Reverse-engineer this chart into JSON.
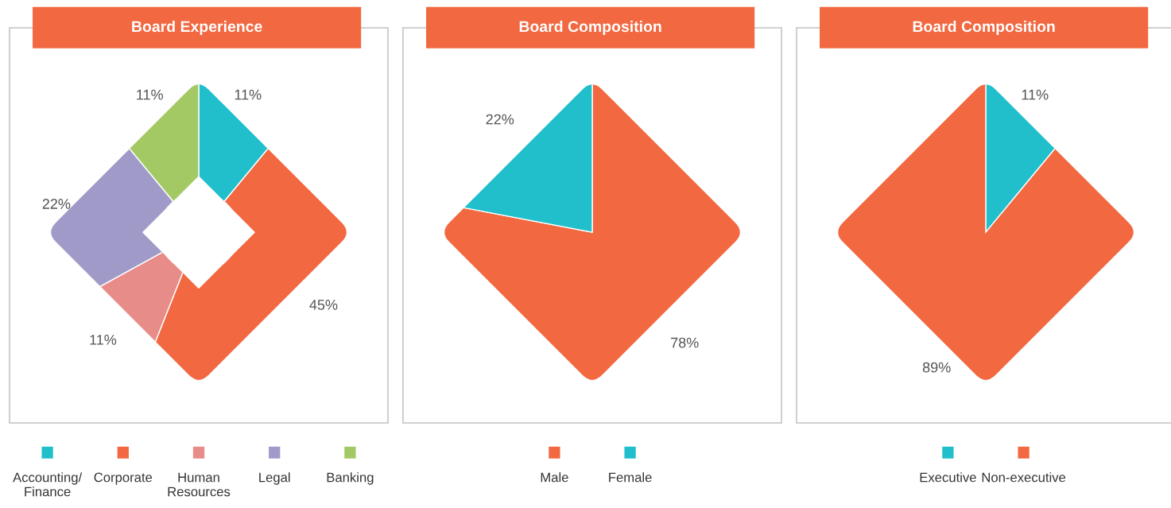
{
  "chart_data": [
    {
      "type": "donut",
      "title": "Board Experience",
      "categories": [
        "Accounting/\nFinance",
        "Corporate",
        "Human\nResources",
        "Legal",
        "Banking"
      ],
      "values": [
        11,
        45,
        11,
        22,
        11
      ],
      "value_labels": [
        "11%",
        "45%",
        "11%",
        "22%",
        "11%"
      ],
      "colors": [
        "#21bfcc",
        "#f26841",
        "#e88c8a",
        "#a09ac8",
        "#a3c964"
      ],
      "legend": "bottom"
    },
    {
      "type": "pie",
      "title": "Board Composition",
      "categories": [
        "Male",
        "Female"
      ],
      "values": [
        78,
        22
      ],
      "value_labels": [
        "78%",
        "22%"
      ],
      "colors": [
        "#f26841",
        "#21bfcc"
      ],
      "legend": "bottom"
    },
    {
      "type": "pie",
      "title": "Board Composition",
      "categories": [
        "Executive",
        "Non-executive"
      ],
      "values": [
        11,
        89
      ],
      "value_labels": [
        "11%",
        "89%"
      ],
      "colors": [
        "#21bfcc",
        "#f26841"
      ],
      "legend": "bottom"
    }
  ]
}
